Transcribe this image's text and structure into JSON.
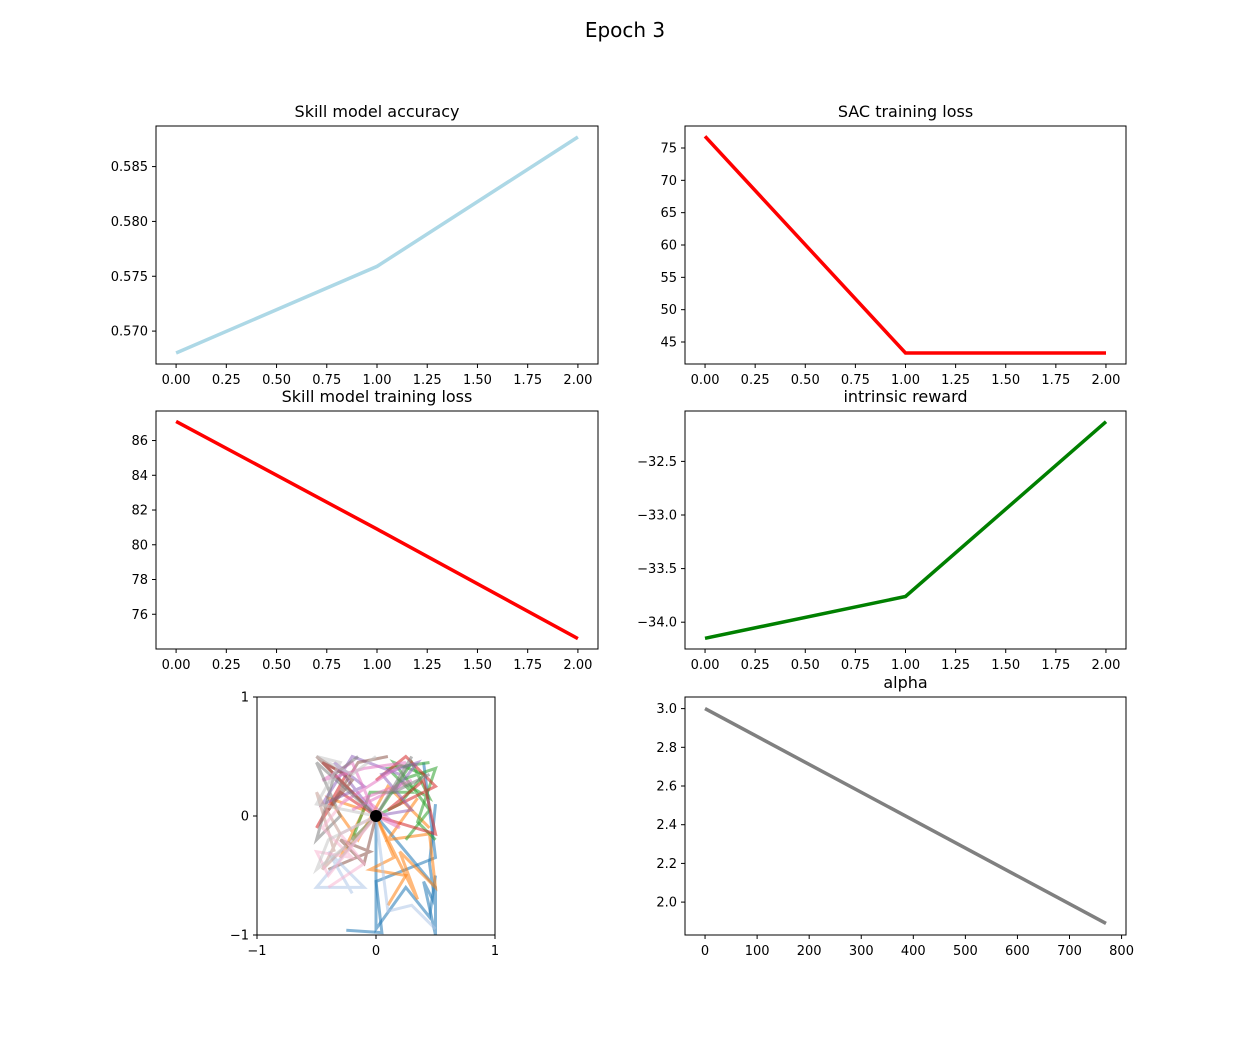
{
  "figure": {
    "title": "Epoch 3"
  },
  "chart_data": [
    {
      "type": "line",
      "title": "Skill model accuracy",
      "color": "#add8e6",
      "x": [
        0,
        1,
        2
      ],
      "values": [
        0.568,
        0.5759,
        0.5877
      ],
      "xlim": [
        -0.1,
        2.1
      ],
      "ylim": [
        0.567,
        0.5887
      ],
      "xticks": [
        0,
        0.25,
        0.5,
        0.75,
        1,
        1.25,
        1.5,
        1.75,
        2
      ],
      "xtick_labels": [
        "0.00",
        "0.25",
        "0.50",
        "0.75",
        "1.00",
        "1.25",
        "1.50",
        "1.75",
        "2.00"
      ],
      "yticks": [
        0.57,
        0.575,
        0.58,
        0.585
      ],
      "ytick_labels": [
        "0.570",
        "0.575",
        "0.580",
        "0.585"
      ]
    },
    {
      "type": "line",
      "title": "SAC training loss",
      "color": "#ff0000",
      "x": [
        0,
        1,
        2
      ],
      "values": [
        76.8,
        43.3,
        43.3
      ],
      "xlim": [
        -0.1,
        2.1
      ],
      "ylim": [
        41.6,
        78.4
      ],
      "xticks": [
        0,
        0.25,
        0.5,
        0.75,
        1,
        1.25,
        1.5,
        1.75,
        2
      ],
      "xtick_labels": [
        "0.00",
        "0.25",
        "0.50",
        "0.75",
        "1.00",
        "1.25",
        "1.50",
        "1.75",
        "2.00"
      ],
      "yticks": [
        45,
        50,
        55,
        60,
        65,
        70,
        75
      ],
      "ytick_labels": [
        "45",
        "50",
        "55",
        "60",
        "65",
        "70",
        "75"
      ]
    },
    {
      "type": "line",
      "title": "Skill model training loss",
      "color": "#ff0000",
      "x": [
        0,
        1,
        2
      ],
      "values": [
        87.1,
        80.9,
        74.6
      ],
      "xlim": [
        -0.1,
        2.1
      ],
      "ylim": [
        74.0,
        87.7
      ],
      "xticks": [
        0,
        0.25,
        0.5,
        0.75,
        1,
        1.25,
        1.5,
        1.75,
        2
      ],
      "xtick_labels": [
        "0.00",
        "0.25",
        "0.50",
        "0.75",
        "1.00",
        "1.25",
        "1.50",
        "1.75",
        "2.00"
      ],
      "yticks": [
        76,
        78,
        80,
        82,
        84,
        86
      ],
      "ytick_labels": [
        "76",
        "78",
        "80",
        "82",
        "84",
        "86"
      ]
    },
    {
      "type": "line",
      "title": "intrinsic reward",
      "color": "#008000",
      "x": [
        0,
        1,
        2
      ],
      "values": [
        -34.15,
        -33.76,
        -32.13
      ],
      "xlim": [
        -0.1,
        2.1
      ],
      "ylim": [
        -34.25,
        -32.03
      ],
      "xticks": [
        0,
        0.25,
        0.5,
        0.75,
        1,
        1.25,
        1.5,
        1.75,
        2
      ],
      "xtick_labels": [
        "0.00",
        "0.25",
        "0.50",
        "0.75",
        "1.00",
        "1.25",
        "1.50",
        "1.75",
        "2.00"
      ],
      "yticks": [
        -34.0,
        -33.5,
        -33.0,
        -32.5
      ],
      "ytick_labels": [
        "−34.0",
        "−33.5",
        "−33.0",
        "−32.5"
      ]
    },
    {
      "type": "line",
      "title": "",
      "description_kind": "trajectories",
      "xlim": [
        -1,
        1
      ],
      "ylim": [
        -1,
        1
      ],
      "xticks": [
        -1,
        0,
        1
      ],
      "xtick_labels": [
        "−1",
        "0",
        "1"
      ],
      "yticks": [
        -1,
        0,
        1
      ],
      "ytick_labels": [
        "−1",
        "0",
        "1"
      ],
      "palette": [
        "#1f77b4",
        "#ff7f0e",
        "#2ca02c",
        "#d62728",
        "#9467bd",
        "#8c564b",
        "#e377c2",
        "#7f7f7f",
        "#aec7e8",
        "#c49c94",
        "#f7b6d2",
        "#c7c7c7"
      ],
      "start_point": {
        "x": 0,
        "y": 0,
        "color": "#000000"
      },
      "series": [
        {
          "color": "#1f77b4",
          "points": [
            [
              0,
              0
            ],
            [
              0.5,
              -0.6
            ],
            [
              0.5,
              -1.0
            ],
            [
              0.4,
              -0.55
            ],
            [
              0.5,
              -0.75
            ],
            [
              0.45,
              -0.4
            ],
            [
              0.5,
              0.1
            ]
          ]
        },
        {
          "color": "#1f77b4",
          "points": [
            [
              0,
              0
            ],
            [
              0.0,
              -0.95
            ],
            [
              0.25,
              -0.6
            ],
            [
              0.45,
              -0.85
            ],
            [
              0.5,
              -0.5
            ]
          ]
        },
        {
          "color": "#1f77b4",
          "points": [
            [
              -0.25,
              -0.96
            ],
            [
              0.05,
              -0.98
            ],
            [
              0.0,
              -0.55
            ],
            [
              0.5,
              -0.35
            ],
            [
              0.4,
              0.45
            ]
          ]
        },
        {
          "color": "#ff7f0e",
          "points": [
            [
              0,
              0
            ],
            [
              0.35,
              -0.7
            ],
            [
              0.2,
              -0.3
            ],
            [
              0.5,
              -0.6
            ],
            [
              0.45,
              -0.15
            ],
            [
              0.1,
              -0.2
            ],
            [
              0.35,
              0.15
            ]
          ]
        },
        {
          "color": "#ff7f0e",
          "points": [
            [
              0,
              0
            ],
            [
              -0.3,
              -0.35
            ],
            [
              -0.1,
              0.05
            ],
            [
              -0.4,
              0.15
            ],
            [
              -0.15,
              -0.2
            ],
            [
              0.1,
              0.25
            ],
            [
              0.45,
              -0.1
            ]
          ]
        },
        {
          "color": "#ff7f0e",
          "points": [
            [
              0,
              0
            ],
            [
              0.15,
              -0.35
            ],
            [
              -0.05,
              -0.45
            ],
            [
              0.25,
              -0.5
            ],
            [
              0.1,
              -0.75
            ]
          ]
        },
        {
          "color": "#2ca02c",
          "points": [
            [
              0,
              0
            ],
            [
              0.3,
              0.45
            ],
            [
              0.45,
              0.15
            ],
            [
              0.2,
              0.3
            ],
            [
              0.5,
              0.4
            ],
            [
              0.35,
              -0.05
            ],
            [
              0.5,
              -0.2
            ]
          ]
        },
        {
          "color": "#2ca02c",
          "points": [
            [
              0,
              0
            ],
            [
              0.2,
              0.1
            ],
            [
              0.4,
              0.35
            ],
            [
              0.15,
              0.45
            ],
            [
              0.45,
              0.05
            ],
            [
              0.25,
              -0.2
            ]
          ]
        },
        {
          "color": "#2ca02c",
          "points": [
            [
              0,
              0
            ],
            [
              -0.2,
              -0.2
            ],
            [
              -0.05,
              0.2
            ],
            [
              0.3,
              0.2
            ],
            [
              0.1,
              0.4
            ],
            [
              0.45,
              0.45
            ]
          ]
        },
        {
          "color": "#d62728",
          "points": [
            [
              0,
              0
            ],
            [
              0.5,
              -0.15
            ],
            [
              0.4,
              0.3
            ],
            [
              0.1,
              0.05
            ],
            [
              0.5,
              0.25
            ],
            [
              0.25,
              0.5
            ],
            [
              0.0,
              0.3
            ]
          ]
        },
        {
          "color": "#d62728",
          "points": [
            [
              0,
              0
            ],
            [
              -0.3,
              0.2
            ],
            [
              -0.5,
              -0.1
            ],
            [
              -0.25,
              0.35
            ],
            [
              -0.45,
              0.45
            ],
            [
              -0.1,
              0.1
            ]
          ]
        },
        {
          "color": "#9467bd",
          "points": [
            [
              0,
              0
            ],
            [
              -0.35,
              0.45
            ],
            [
              -0.1,
              0.25
            ],
            [
              -0.45,
              0.1
            ],
            [
              -0.2,
              0.5
            ],
            [
              0.2,
              0.35
            ]
          ]
        },
        {
          "color": "#9467bd",
          "points": [
            [
              0,
              0
            ],
            [
              0.3,
              0.05
            ],
            [
              0.05,
              0.35
            ],
            [
              0.35,
              0.45
            ],
            [
              0.15,
              0.2
            ]
          ]
        },
        {
          "color": "#8c564b",
          "points": [
            [
              0,
              0
            ],
            [
              -0.5,
              0.5
            ],
            [
              -0.2,
              0.3
            ],
            [
              -0.4,
              0.05
            ],
            [
              -0.15,
              0.45
            ],
            [
              0.1,
              0.5
            ]
          ]
        },
        {
          "color": "#8c564b",
          "points": [
            [
              0,
              0
            ],
            [
              -0.1,
              -0.4
            ],
            [
              -0.3,
              -0.2
            ],
            [
              -0.05,
              -0.3
            ],
            [
              -0.4,
              -0.45
            ]
          ]
        },
        {
          "color": "#e377c2",
          "points": [
            [
              0,
              0
            ],
            [
              -0.2,
              0.45
            ],
            [
              -0.45,
              0.3
            ],
            [
              -0.1,
              0.4
            ],
            [
              0.25,
              0.45
            ],
            [
              -0.3,
              0.1
            ]
          ]
        },
        {
          "color": "#e377c2",
          "points": [
            [
              0,
              0
            ],
            [
              0.2,
              -0.1
            ],
            [
              -0.1,
              0.15
            ],
            [
              0.3,
              0.3
            ],
            [
              -0.2,
              0.05
            ]
          ]
        },
        {
          "color": "#7f7f7f",
          "points": [
            [
              0,
              0
            ],
            [
              -0.5,
              0.45
            ],
            [
              -0.3,
              0.0
            ],
            [
              -0.5,
              -0.2
            ],
            [
              -0.35,
              0.35
            ],
            [
              -0.15,
              0.5
            ]
          ]
        },
        {
          "color": "#7f7f7f",
          "points": [
            [
              0,
              0
            ],
            [
              0.3,
              0.5
            ],
            [
              0.15,
              0.2
            ],
            [
              0.45,
              0.35
            ]
          ]
        },
        {
          "color": "#aec7e8",
          "points": [
            [
              0,
              0
            ],
            [
              -0.5,
              -0.6
            ],
            [
              -0.1,
              -0.6
            ],
            [
              -0.4,
              -0.3
            ],
            [
              -0.2,
              -0.65
            ]
          ]
        },
        {
          "color": "#aec7e8",
          "points": [
            [
              0,
              0
            ],
            [
              0.1,
              -0.8
            ],
            [
              0.3,
              -0.75
            ],
            [
              0.5,
              -0.95
            ]
          ]
        },
        {
          "color": "#c49c94",
          "points": [
            [
              0,
              0
            ],
            [
              -0.45,
              -0.45
            ],
            [
              -0.3,
              -0.15
            ],
            [
              -0.5,
              0.2
            ],
            [
              -0.35,
              -0.3
            ]
          ]
        },
        {
          "color": "#f7b6d2",
          "points": [
            [
              0,
              0
            ],
            [
              -0.4,
              -0.5
            ],
            [
              -0.5,
              -0.3
            ],
            [
              -0.2,
              -0.35
            ],
            [
              -0.45,
              -0.1
            ],
            [
              -0.25,
              0.15
            ]
          ]
        },
        {
          "color": "#f7b6d2",
          "points": [
            [
              0,
              0
            ],
            [
              -0.3,
              -0.15
            ],
            [
              -0.1,
              -0.4
            ],
            [
              -0.4,
              -0.6
            ]
          ]
        },
        {
          "color": "#c7c7c7",
          "points": [
            [
              0,
              0
            ],
            [
              -0.5,
              0.1
            ],
            [
              -0.3,
              0.45
            ],
            [
              -0.5,
              0.5
            ],
            [
              -0.2,
              0.35
            ],
            [
              0.0,
              0.5
            ]
          ]
        },
        {
          "color": "#c7c7c7",
          "points": [
            [
              0,
              0
            ],
            [
              -0.4,
              -0.2
            ],
            [
              -0.5,
              -0.45
            ],
            [
              -0.25,
              -0.25
            ]
          ]
        }
      ]
    },
    {
      "type": "line",
      "title": "alpha",
      "color": "#808080",
      "x": [
        0,
        770
      ],
      "values": [
        3.0,
        1.89
      ],
      "xlim": [
        -38.5,
        808.5
      ],
      "ylim": [
        1.83,
        3.06
      ],
      "xticks": [
        0,
        100,
        200,
        300,
        400,
        500,
        600,
        700,
        800
      ],
      "xtick_labels": [
        "0",
        "100",
        "200",
        "300",
        "400",
        "500",
        "600",
        "700",
        "800"
      ],
      "yticks": [
        2.0,
        2.2,
        2.4,
        2.6,
        2.8,
        3.0
      ],
      "ytick_labels": [
        "2.0",
        "2.2",
        "2.4",
        "2.6",
        "2.8",
        "3.0"
      ]
    }
  ]
}
